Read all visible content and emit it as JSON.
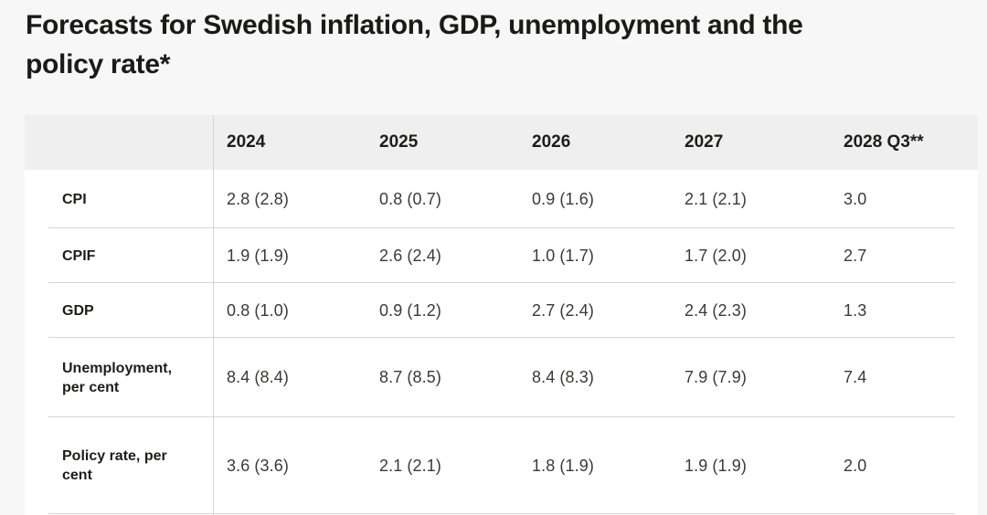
{
  "title": {
    "full": "Forecasts for Swedish inflation, GDP, unemployment and the policy rate*",
    "line1": "Forecasts for Swedish inflation, GDP, unemployment and the",
    "line2": "policy rate*"
  },
  "chart_data": {
    "type": "table",
    "title": "Forecasts for Swedish inflation, GDP, unemployment and the policy rate*",
    "categories": [
      "2024",
      "2025",
      "2026",
      "2027",
      "2028 Q3**"
    ],
    "series": [
      {
        "name": "CPI",
        "values": [
          "2.8 (2.8)",
          "0.8 (0.7)",
          "0.9 (1.6)",
          "2.1 (2.1)",
          "3.0"
        ]
      },
      {
        "name": "CPIF",
        "values": [
          "1.9 (1.9)",
          "2.6 (2.4)",
          "1.0 (1.7)",
          "1.7 (2.0)",
          "2.7"
        ]
      },
      {
        "name": "GDP",
        "values": [
          "0.8 (1.0)",
          "0.9 (1.2)",
          "2.7 (2.4)",
          "2.4 (2.3)",
          "1.3"
        ]
      },
      {
        "name": "Unemployment, per cent",
        "values": [
          "8.4 (8.4)",
          "8.7 (8.5)",
          "8.4 (8.3)",
          "7.9 (7.9)",
          "7.4"
        ]
      },
      {
        "name": "Policy rate, per cent",
        "values": [
          "3.6 (3.6)",
          "2.1 (2.1)",
          "1.8 (1.9)",
          "1.9 (1.9)",
          "2.0"
        ]
      }
    ]
  },
  "colors": {
    "page_background": "#f7f7f7",
    "header_background": "#efefef",
    "table_background": "#ffffff",
    "divider": "#d6d6d6",
    "text": "#1d1d1b"
  }
}
